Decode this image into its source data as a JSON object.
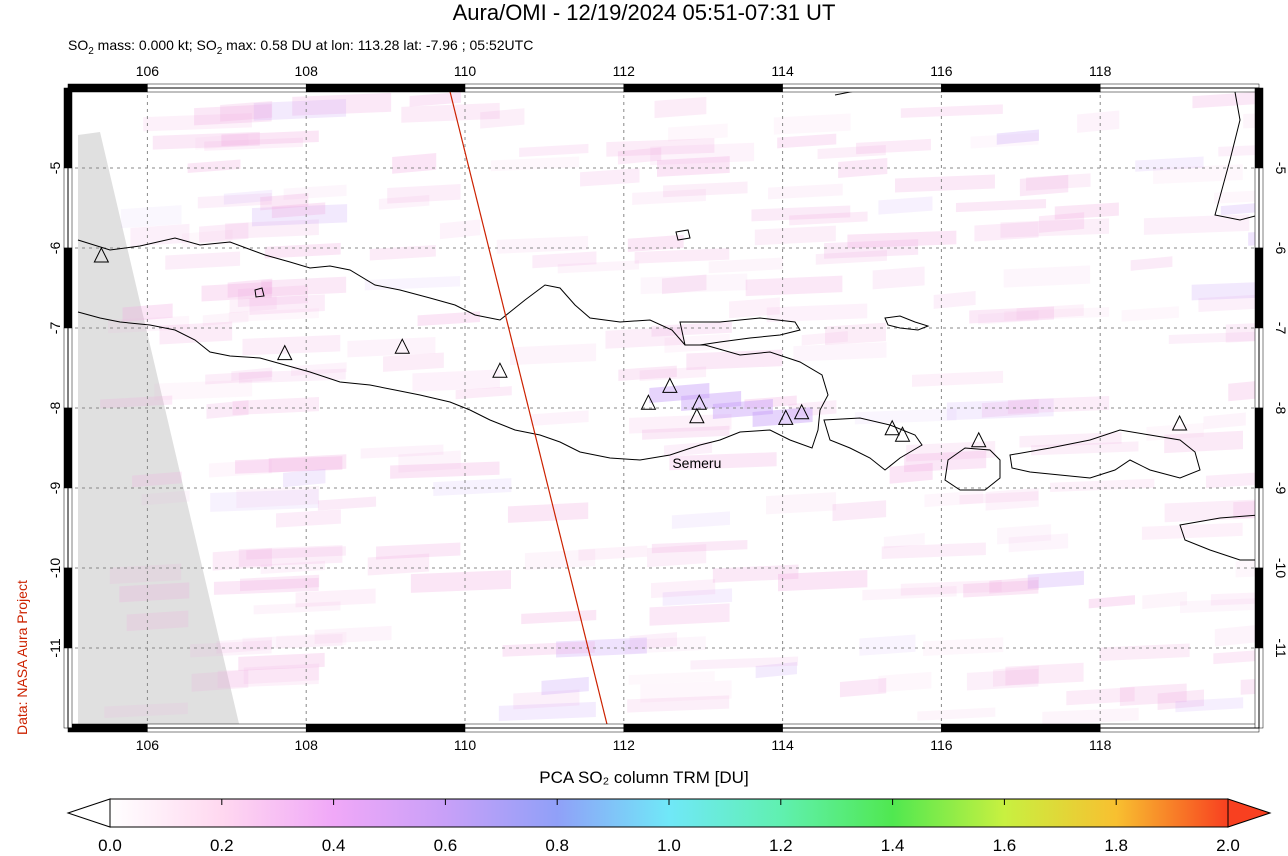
{
  "header": {
    "title": "Aura/OMI - 12/19/2024 05:51-07:31 UT",
    "subtitle_prefix": "SO",
    "subtitle_sub": "2",
    "subtitle_mid": " mass: 0.000 kt; SO",
    "subtitle_sub2": "2",
    "subtitle_rest": " max: 0.58 DU at lon: 113.28 lat: -7.96 ; 05:52UTC"
  },
  "credit": "Data: NASA Aura Project",
  "map": {
    "lon_range": [
      105,
      120
    ],
    "lat_range": [
      -12,
      -4
    ],
    "lon_ticks": [
      "106",
      "108",
      "110",
      "112",
      "114",
      "116",
      "118"
    ],
    "lon_tick_values": [
      106,
      108,
      110,
      112,
      114,
      116,
      118
    ],
    "lat_ticks": [
      "-5",
      "-6",
      "-7",
      "-8",
      "-9",
      "-10",
      "-11"
    ],
    "lat_tick_values": [
      -5,
      -6,
      -7,
      -8,
      -9,
      -10,
      -11
    ],
    "volcano_label": "Semeru",
    "volcano_label_lonlat": [
      112.92,
      -8.75
    ],
    "volcanoes": [
      [
        105.42,
        -6.1
      ],
      [
        107.73,
        -7.32
      ],
      [
        109.21,
        -7.24
      ],
      [
        110.44,
        -7.54
      ],
      [
        112.31,
        -7.94
      ],
      [
        112.58,
        -7.73
      ],
      [
        112.95,
        -7.94
      ],
      [
        112.92,
        -8.11
      ],
      [
        114.04,
        -8.13
      ],
      [
        114.24,
        -8.06
      ],
      [
        115.38,
        -8.26
      ],
      [
        115.51,
        -8.34
      ],
      [
        116.47,
        -8.41
      ],
      [
        119.0,
        -8.2
      ]
    ],
    "orbit_track": [
      [
        109.8,
        -4.0
      ],
      [
        111.8,
        -12.0
      ]
    ],
    "no_data_color": "#e0e0e0",
    "max_point": {
      "lon": 113.28,
      "lat": -7.96,
      "value_du": 0.58
    }
  },
  "colorbar": {
    "title": "PCA SO₂ column TRM [DU]",
    "ticks": [
      "0.0",
      "0.2",
      "0.4",
      "0.6",
      "0.8",
      "1.0",
      "1.2",
      "1.4",
      "1.6",
      "1.8",
      "2.0"
    ],
    "stops": [
      "#ffffff",
      "#ffd8f0",
      "#f0a8f8",
      "#c8a0f8",
      "#90a0f8",
      "#70e8f8",
      "#60f0b0",
      "#50e850",
      "#c8f040",
      "#f8c030",
      "#f84020"
    ]
  }
}
